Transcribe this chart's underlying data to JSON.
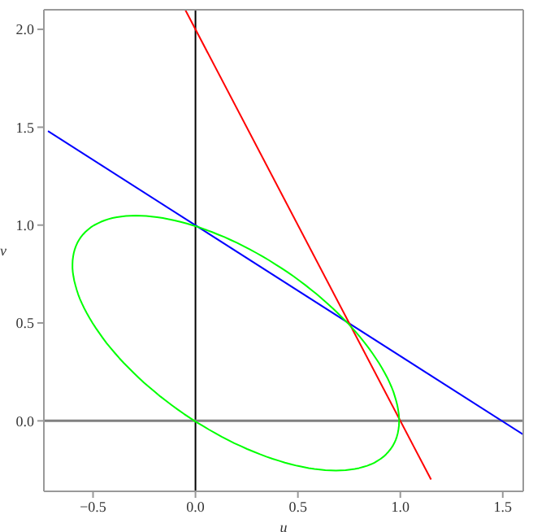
{
  "chart_data": {
    "type": "line",
    "xlabel": "u",
    "ylabel": "v",
    "xlim": [
      -0.74,
      1.6
    ],
    "ylim": [
      -0.36,
      2.1
    ],
    "xticks": [
      -0.5,
      {
        "value": 0,
        "label": "0.0"
      },
      0.5,
      {
        "value": 1,
        "label": "1.0"
      },
      1.5
    ],
    "yticks": [
      {
        "value": 0,
        "label": "0.0"
      },
      0.5,
      {
        "value": 1,
        "label": "1.0"
      },
      1.5,
      {
        "value": 2,
        "label": "2.0"
      }
    ],
    "marker": "none",
    "line_style": "solid",
    "ref_lines": [
      {
        "axis": "x",
        "value": 0,
        "color": "#000000"
      },
      {
        "axis": "y",
        "value": 0,
        "color": "#808080"
      }
    ],
    "series": [
      {
        "color": "#0000ff",
        "x": [
          -0.72,
          1.6
        ],
        "values": [
          1.48,
          -0.07
        ]
      },
      {
        "color": "#ff0000",
        "x": [
          -0.05,
          1.15
        ],
        "values": [
          2.1,
          -0.3
        ]
      }
    ]
  }
}
